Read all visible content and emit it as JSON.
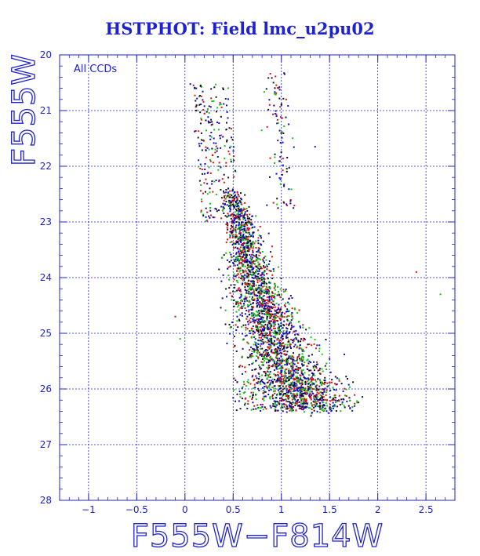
{
  "chart_data": {
    "type": "scatter",
    "title": "HSTPHOT: Field lmc_u2pu02",
    "xlabel": "F555W−F814W",
    "ylabel": "F555W",
    "annotation": "All CCDs",
    "xlim": [
      -1.3,
      2.8
    ],
    "ylim": [
      28,
      20
    ],
    "y_inverted": true,
    "grid": true,
    "x_ticks": [
      -1,
      -0.5,
      0,
      0.5,
      1,
      1.5,
      2,
      2.5
    ],
    "x_tick_labels": [
      "−1",
      "−0.5",
      "0",
      "0.5",
      "1",
      "1.5",
      "2",
      "2.5"
    ],
    "y_ticks": [
      20,
      21,
      22,
      23,
      24,
      25,
      26,
      27,
      28
    ],
    "y_tick_labels": [
      "20",
      "21",
      "22",
      "23",
      "24",
      "25",
      "26",
      "27",
      "28"
    ],
    "colors": {
      "axis": "#1f22d0",
      "grid": "#1f22d0",
      "points": [
        "#0a0ad8",
        "#12c312",
        "#e01010",
        "#101020"
      ]
    },
    "series": [
      {
        "color": "#0a0ad8",
        "points": [
          [
            0.6,
            23.4
          ],
          [
            0.65,
            23.7
          ],
          [
            0.7,
            24.0
          ],
          [
            0.72,
            24.3
          ],
          [
            0.75,
            24.5
          ],
          [
            0.8,
            24.8
          ],
          [
            0.85,
            25.0
          ],
          [
            0.9,
            25.3
          ],
          [
            1.0,
            25.6
          ],
          [
            1.1,
            25.8
          ],
          [
            1.2,
            26.0
          ],
          [
            0.95,
            24.6
          ],
          [
            0.68,
            23.9
          ],
          [
            0.55,
            22.9
          ],
          [
            0.45,
            22.4
          ],
          [
            0.1,
            20.6
          ],
          [
            1.0,
            20.9
          ],
          [
            0.95,
            21.1
          ],
          [
            0.3,
            21.5
          ],
          [
            1.35,
            21.65
          ],
          [
            0.85,
            22.7
          ]
        ]
      },
      {
        "color": "#12c312",
        "points": [
          [
            0.62,
            23.5
          ],
          [
            0.7,
            24.1
          ],
          [
            0.78,
            24.6
          ],
          [
            0.88,
            25.1
          ],
          [
            1.05,
            25.5
          ],
          [
            1.3,
            26.0
          ],
          [
            1.55,
            26.3
          ],
          [
            0.35,
            22.0
          ],
          [
            0.25,
            21.7
          ],
          [
            2.65,
            24.3
          ],
          [
            -0.05,
            25.1
          ]
        ]
      },
      {
        "color": "#e01010",
        "points": [
          [
            0.58,
            23.2
          ],
          [
            0.66,
            23.8
          ],
          [
            0.76,
            24.4
          ],
          [
            0.92,
            25.2
          ],
          [
            1.15,
            25.9
          ],
          [
            1.4,
            26.2
          ],
          [
            0.2,
            22.3
          ],
          [
            2.4,
            23.9
          ],
          [
            -0.1,
            24.7
          ],
          [
            1.05,
            20.8
          ]
        ]
      }
    ]
  }
}
